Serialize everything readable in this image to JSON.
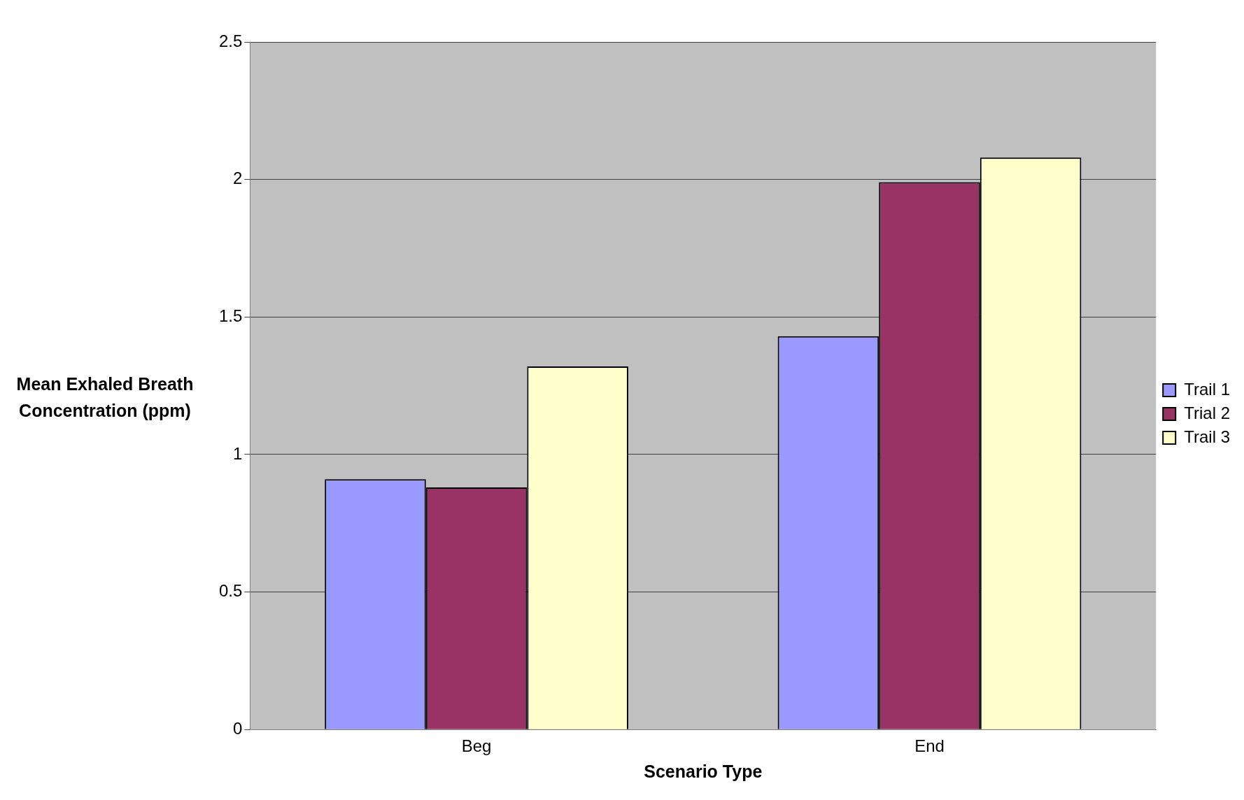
{
  "chart_data": {
    "type": "bar",
    "xlabel": "Scenario Type",
    "ylabel": "Mean Exhaled Breath Concentration (ppm)",
    "categories": [
      "Beg",
      "End"
    ],
    "series": [
      {
        "name": "Trail 1",
        "color": "#9999ff",
        "values": [
          0.91,
          1.43
        ]
      },
      {
        "name": "Trial 2",
        "color": "#993366",
        "values": [
          0.88,
          1.99
        ]
      },
      {
        "name": "Trail 3",
        "color": "#ffffcc",
        "values": [
          1.32,
          2.08
        ]
      }
    ],
    "ylim": [
      0,
      2.5
    ],
    "yticks": [
      0,
      0.5,
      1,
      1.5,
      2,
      2.5
    ],
    "grid": "y",
    "legend": "right"
  }
}
